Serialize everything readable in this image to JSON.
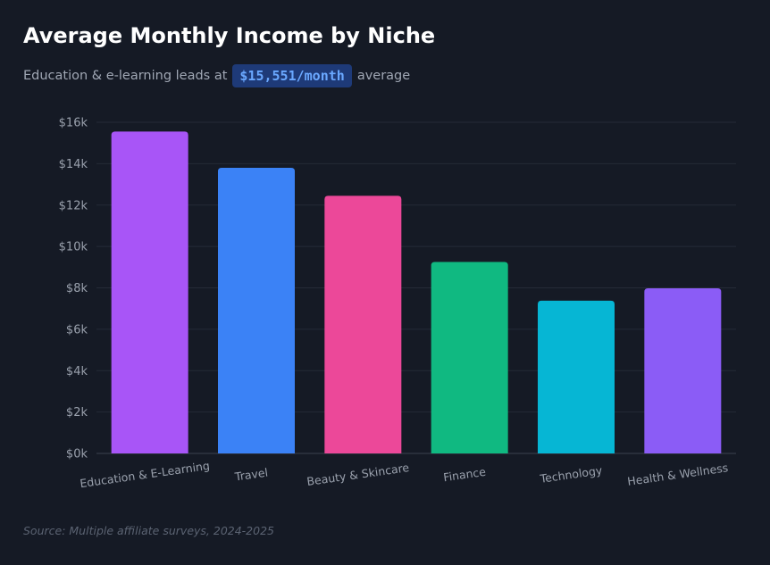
{
  "title": "Average Monthly Income by Niche",
  "subtitle": {
    "prefix": "Education & e-learning leads at",
    "highlight": "$15,551/month",
    "suffix": "average"
  },
  "source": "Source: Multiple affiliate surveys, 2024-2025",
  "chart_data": {
    "type": "bar",
    "title": "Average Monthly Income by Niche",
    "categories": [
      "Education & E-Learning",
      "Travel",
      "Beauty & Skincare",
      "Finance",
      "Technology",
      "Health & Wellness"
    ],
    "values": [
      15551,
      13800,
      12450,
      9250,
      7380,
      7980
    ],
    "colors": [
      "#a855f7",
      "#3b82f6",
      "#ec4899",
      "#10b981",
      "#06b6d4",
      "#8b5cf6"
    ],
    "ylim": [
      0,
      16000
    ],
    "yticks": [
      0,
      2000,
      4000,
      6000,
      8000,
      10000,
      12000,
      14000,
      16000
    ],
    "ytick_labels": [
      "$0k",
      "$2k",
      "$4k",
      "$6k",
      "$8k",
      "$10k",
      "$12k",
      "$14k",
      "$16k"
    ],
    "grid": true,
    "legend": "none"
  }
}
